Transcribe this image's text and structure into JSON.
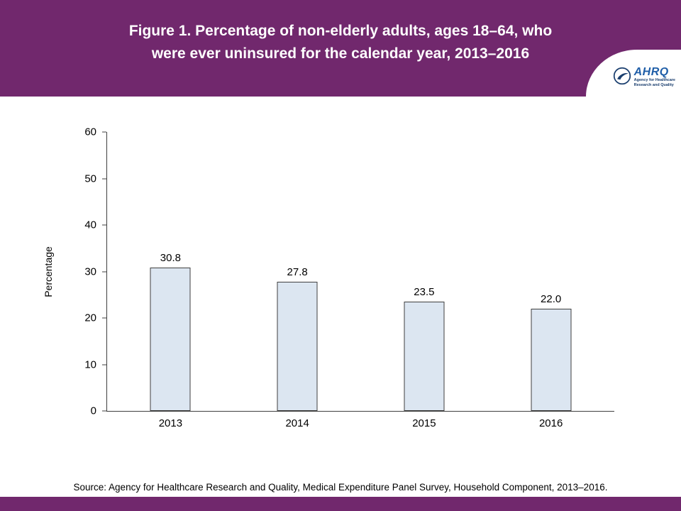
{
  "header": {
    "title_line1": "Figure 1. Percentage of non-elderly adults, ages 18–64, who",
    "title_line2": "were ever uninsured for the calendar year, 2013–2016",
    "logo": {
      "acronym": "AHRQ",
      "tagline_line1": "Agency for Healthcare",
      "tagline_line2": "Research and Quality"
    }
  },
  "chart_data": {
    "type": "bar",
    "title": "Figure 1. Percentage of non-elderly adults, ages 18–64, who were ever uninsured for the calendar year, 2013–2016",
    "categories": [
      "2013",
      "2014",
      "2015",
      "2016"
    ],
    "values": [
      30.8,
      27.8,
      23.5,
      22.0
    ],
    "value_labels": [
      "30.8",
      "27.8",
      "23.5",
      "22.0"
    ],
    "xlabel": "",
    "ylabel": "Percentage",
    "ylim": [
      0,
      60
    ],
    "ytick_step": 10,
    "grid": false,
    "legend": "none",
    "bar_fill": "#dce6f1",
    "bar_border": "#3f3f3f"
  },
  "footer": {
    "source": "Source: Agency for Healthcare Research and Quality, Medical Expenditure Panel Survey, Household Component, 2013–2016."
  },
  "colors": {
    "header_purple": "#71286d",
    "footer_purple": "#71286d",
    "logo_blue": "#1f5ea8",
    "logo_navy": "#1a3e6e"
  }
}
